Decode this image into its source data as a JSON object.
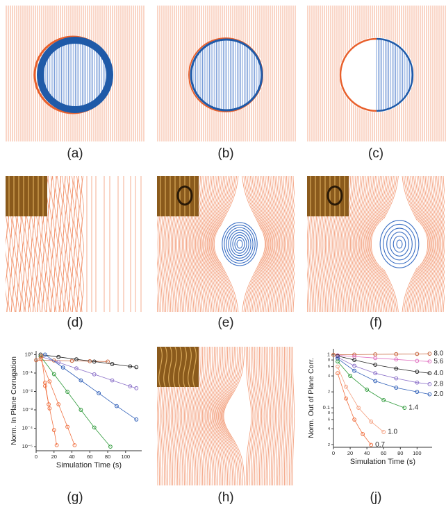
{
  "panel_labels": [
    "(a)",
    "(b)",
    "(c)",
    "(d)",
    "(e)",
    "(f)",
    "(g)",
    "(h)",
    "(j)"
  ],
  "chart_data": [
    {
      "type": "scatter",
      "xlabel": "Simulation Time (s)",
      "ylabel": "Norm. In Plane Corrugation",
      "log_y": true,
      "xlim": [
        0,
        118
      ],
      "ylim": [
        6e-06,
        1.6
      ],
      "xticks": [
        0,
        20,
        40,
        60,
        80,
        100
      ],
      "yticks": [
        {
          "value": 1,
          "label": "10⁰"
        },
        {
          "value": 0.1,
          "label": "10⁻¹"
        },
        {
          "value": 0.01,
          "label": "10⁻²"
        },
        {
          "value": 0.001,
          "label": "10⁻³"
        },
        {
          "value": 0.0001,
          "label": "10⁻⁴"
        },
        {
          "value": 1e-05,
          "label": "10⁻⁵"
        }
      ],
      "series": [
        {
          "color": "#c8643c",
          "x": [
            0,
            20,
            40,
            60,
            80
          ],
          "values": [
            0.5,
            0.48,
            0.46,
            0.44,
            0.42
          ]
        },
        {
          "color": "#222222",
          "x": [
            5,
            25,
            45,
            65,
            85,
            105,
            112
          ],
          "values": [
            1.0,
            0.75,
            0.56,
            0.42,
            0.31,
            0.23,
            0.21
          ]
        },
        {
          "color": "#8a6fc8",
          "x": [
            5,
            25,
            45,
            65,
            85,
            105,
            112
          ],
          "values": [
            0.8,
            0.38,
            0.18,
            0.085,
            0.04,
            0.019,
            0.015
          ]
        },
        {
          "color": "#2f5fb8",
          "x": [
            10,
            30,
            50,
            70,
            90,
            112
          ],
          "values": [
            1.0,
            0.2,
            0.04,
            0.008,
            0.0016,
            0.0003
          ]
        },
        {
          "color": "#2e9a3a",
          "x": [
            5,
            20,
            35,
            50,
            65,
            83
          ],
          "values": [
            0.8,
            0.087,
            0.0095,
            0.001,
            0.00011,
            1e-05
          ]
        },
        {
          "color": "#f07040",
          "x": [
            5,
            15,
            25,
            35,
            43
          ],
          "values": [
            0.6,
            0.035,
            0.002,
            0.00012,
            1.2e-05
          ]
        },
        {
          "color": "#f07040",
          "x": [
            10,
            15,
            20,
            23
          ],
          "values": [
            0.02,
            0.0012,
            8e-05,
            1.2e-05
          ]
        },
        {
          "color": "#f07040",
          "x": [
            6,
            10,
            14
          ],
          "values": [
            0.8,
            0.03,
            0.002
          ]
        }
      ]
    },
    {
      "type": "scatter",
      "xlabel": "Simulation Time (s)",
      "ylabel": "Norm. Out of Plane Corr.",
      "log_y": true,
      "xlim": [
        0,
        118
      ],
      "ylim": [
        0.018,
        1.3
      ],
      "xticks": [
        0,
        20,
        40,
        60,
        80,
        100
      ],
      "yticks": [
        1,
        {
          "value": 0.8,
          "label": "8"
        },
        {
          "value": 0.6,
          "label": "6"
        },
        {
          "value": 0.4,
          "label": "4"
        },
        {
          "value": 0.2,
          "label": "2"
        },
        0.1,
        {
          "value": 0.08,
          "label": "8"
        },
        {
          "value": 0.06,
          "label": "6"
        },
        {
          "value": 0.04,
          "label": "4"
        },
        {
          "value": 0.02,
          "label": "2"
        }
      ],
      "series": [
        {
          "name": "8.0",
          "color": "#c8643c",
          "x": [
            0,
            25,
            50,
            75,
            100,
            115
          ],
          "values": [
            1.0,
            1.01,
            1.02,
            1.03,
            1.04,
            1.05
          ]
        },
        {
          "name": "5.6",
          "color": "#e070c0",
          "x": [
            5,
            25,
            50,
            75,
            100,
            115
          ],
          "values": [
            0.98,
            0.93,
            0.87,
            0.82,
            0.77,
            0.75
          ]
        },
        {
          "name": "4.0",
          "color": "#222222",
          "x": [
            5,
            25,
            50,
            75,
            100,
            115
          ],
          "values": [
            0.95,
            0.8,
            0.65,
            0.55,
            0.48,
            0.45
          ]
        },
        {
          "name": "2.8",
          "color": "#8a6fc8",
          "x": [
            5,
            25,
            50,
            75,
            100,
            115
          ],
          "values": [
            0.9,
            0.62,
            0.45,
            0.36,
            0.3,
            0.28
          ]
        },
        {
          "name": "2.0",
          "color": "#2f5fb8",
          "x": [
            5,
            25,
            50,
            75,
            100,
            115
          ],
          "values": [
            0.85,
            0.5,
            0.32,
            0.24,
            0.2,
            0.18
          ]
        },
        {
          "name": "1.4",
          "color": "#2e9a3a",
          "x": [
            5,
            20,
            40,
            60,
            85
          ],
          "values": [
            0.75,
            0.4,
            0.22,
            0.14,
            0.1
          ]
        },
        {
          "name": "1.0",
          "color": "#f4a080",
          "x": [
            5,
            15,
            30,
            45,
            60
          ],
          "values": [
            0.6,
            0.25,
            0.1,
            0.055,
            0.035
          ]
        },
        {
          "name": "0.7",
          "color": "#f07040",
          "x": [
            5,
            15,
            25,
            35,
            45
          ],
          "values": [
            0.45,
            0.15,
            0.06,
            0.032,
            0.02
          ]
        }
      ]
    }
  ]
}
